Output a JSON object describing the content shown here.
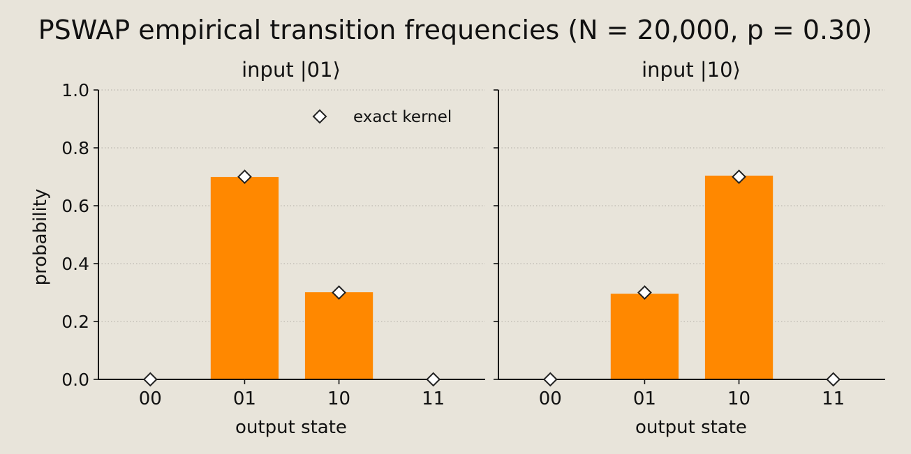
{
  "figure": {
    "title": "PSWAP empirical transition frequencies (N = 20,000, p = 0.30)",
    "background": "#e8e4da"
  },
  "colors": {
    "bar": "#ff8800",
    "marker_fill": "#ffffff",
    "marker_stroke": "#222222",
    "grid": "#bdb9b0",
    "axis": "#111111"
  },
  "legend": {
    "label": "exact kernel",
    "position": "top-right",
    "marker": "diamond"
  },
  "chart_data": [
    {
      "type": "bar",
      "title": "input |01⟩",
      "xlabel": "output state",
      "ylabel": "probability",
      "categories": [
        "00",
        "01",
        "10",
        "11"
      ],
      "values": [
        0.0,
        0.699,
        0.301,
        0.0
      ],
      "exact_kernel": [
        0.0,
        0.7,
        0.3,
        0.0
      ],
      "ylim": [
        0.0,
        1.0
      ],
      "yticks": [
        "0.0",
        "0.2",
        "0.4",
        "0.6",
        "0.8",
        "1.0"
      ],
      "grid": "y-dotted",
      "legend": true
    },
    {
      "type": "bar",
      "title": "input |10⟩",
      "xlabel": "output state",
      "categories": [
        "00",
        "01",
        "10",
        "11"
      ],
      "values": [
        0.0,
        0.296,
        0.704,
        0.0
      ],
      "exact_kernel": [
        0.0,
        0.3,
        0.7,
        0.0
      ],
      "ylim": [
        0.0,
        1.0
      ],
      "grid": "y-dotted",
      "legend": false
    }
  ]
}
